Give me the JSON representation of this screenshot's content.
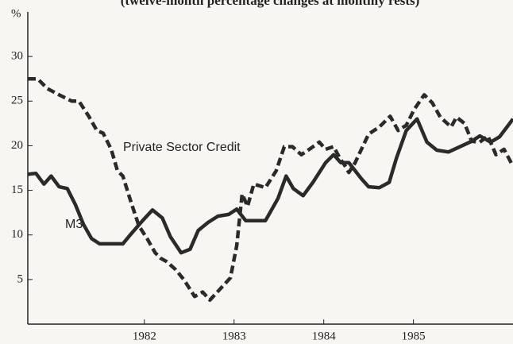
{
  "chart_data": {
    "type": "line",
    "title": "(twelve-month percentage changes at monthly rests)",
    "y_unit_label": "%",
    "annotations": [
      "Private Sector Credit",
      "M3"
    ],
    "xlim": [
      1980.7,
      1986.11
    ],
    "xticks": [
      1982,
      1983,
      1984,
      1985
    ],
    "ylim": [
      0,
      35
    ],
    "yticks": [
      5,
      10,
      15,
      20,
      25,
      30
    ],
    "series": [
      {
        "name": "M3",
        "color": "#2a2a2a",
        "dash": "solid",
        "x": [
          1980.7,
          1980.79,
          1980.88,
          1980.96,
          1981.05,
          1981.14,
          1981.23,
          1981.32,
          1981.41,
          1981.5,
          1981.63,
          1981.76,
          1981.85,
          1981.98,
          1982.09,
          1982.2,
          1982.29,
          1982.41,
          1982.51,
          1982.6,
          1982.71,
          1982.82,
          1982.94,
          1983.03,
          1983.13,
          1983.24,
          1983.35,
          1983.49,
          1983.58,
          1983.66,
          1983.77,
          1983.88,
          1984.02,
          1984.11,
          1984.19,
          1984.28,
          1984.42,
          1984.5,
          1984.62,
          1984.73,
          1984.81,
          1984.92,
          1985.04,
          1985.15,
          1985.26,
          1985.39,
          1985.52,
          1985.65,
          1985.74,
          1985.86,
          1985.96,
          1986.11
        ],
        "values": [
          16.8,
          16.9,
          15.7,
          16.6,
          15.4,
          15.2,
          13.4,
          11.2,
          9.6,
          9.0,
          9.0,
          9.0,
          10.1,
          11.6,
          12.8,
          11.9,
          9.8,
          8.0,
          8.4,
          10.5,
          11.4,
          12.1,
          12.3,
          12.9,
          11.6,
          11.6,
          11.6,
          14.1,
          16.6,
          15.2,
          14.4,
          15.9,
          18.1,
          19.0,
          18.1,
          18.1,
          16.3,
          15.4,
          15.3,
          15.9,
          18.6,
          21.7,
          23.0,
          20.4,
          19.5,
          19.3,
          19.9,
          20.5,
          21.1,
          20.4,
          21.0,
          23.0
        ]
      },
      {
        "name": "Private Sector Credit",
        "color": "#2a2a2a",
        "dash": "dashed",
        "x": [
          1980.7,
          1980.81,
          1980.92,
          1981.05,
          1981.19,
          1981.27,
          1981.38,
          1981.47,
          1981.54,
          1981.63,
          1981.7,
          1981.76,
          1981.85,
          1981.94,
          1982.03,
          1982.12,
          1982.18,
          1982.25,
          1982.35,
          1982.44,
          1982.56,
          1982.65,
          1982.73,
          1982.85,
          1982.96,
          1983.03,
          1983.09,
          1983.15,
          1983.22,
          1983.35,
          1983.47,
          1983.56,
          1983.65,
          1983.75,
          1983.84,
          1983.95,
          1984.02,
          1984.11,
          1984.18,
          1984.24,
          1984.28,
          1984.35,
          1984.42,
          1984.5,
          1984.62,
          1984.74,
          1984.83,
          1984.92,
          1985.01,
          1985.12,
          1985.21,
          1985.3,
          1985.42,
          1985.48,
          1985.57,
          1985.65,
          1985.74,
          1985.83,
          1985.92,
          1986.01,
          1986.11
        ],
        "values": [
          27.5,
          27.5,
          26.4,
          25.7,
          25.0,
          25.0,
          23.3,
          21.7,
          21.4,
          19.6,
          17.2,
          16.6,
          13.7,
          11.0,
          9.6,
          8.0,
          7.4,
          7.0,
          6.1,
          5.0,
          3.1,
          3.6,
          2.7,
          4.0,
          5.2,
          8.8,
          14.6,
          13.2,
          15.7,
          15.3,
          17.2,
          19.9,
          19.9,
          19.0,
          19.6,
          20.4,
          19.6,
          19.9,
          18.6,
          17.7,
          17.0,
          18.1,
          19.6,
          21.3,
          22.1,
          23.3,
          21.7,
          22.3,
          24.1,
          25.7,
          24.8,
          23.2,
          22.1,
          23.2,
          22.5,
          20.5,
          20.4,
          21.1,
          19.0,
          19.6,
          17.7
        ]
      }
    ]
  }
}
